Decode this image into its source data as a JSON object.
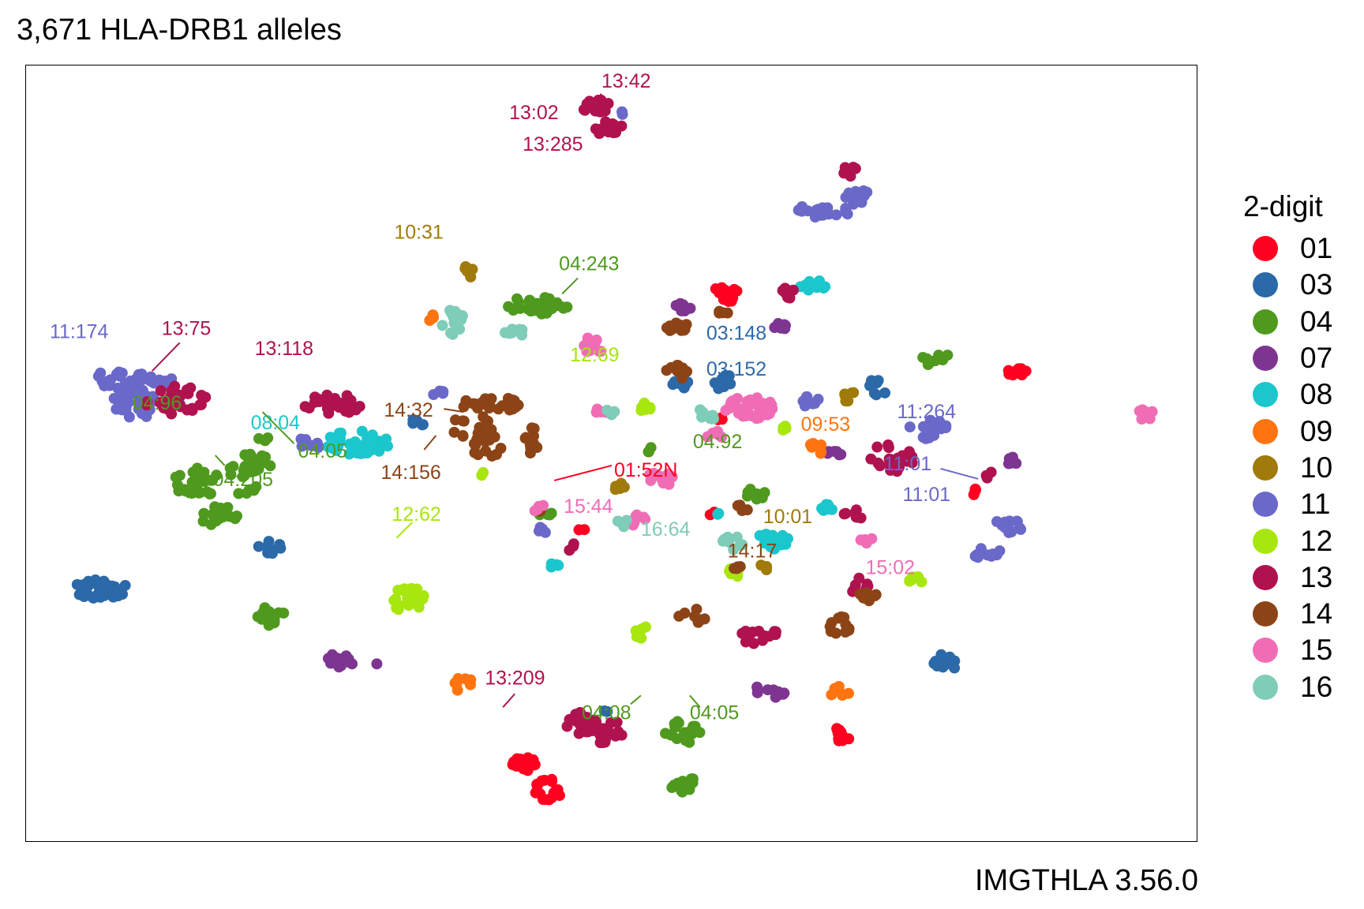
{
  "title": "3,671 HLA-DRB1 alleles",
  "caption": "IMGTHLA 3.56.0",
  "chart_data": {
    "type": "scatter",
    "title": "3,671 HLA-DRB1 alleles",
    "xlabel": "",
    "ylabel": "",
    "xlim": [
      0,
      1485
    ],
    "ylim": [
      985,
      0
    ],
    "grid": false,
    "legend": {
      "title": "2-digit",
      "position": "right",
      "entries": [
        {
          "name": "01",
          "color": "#FF0020"
        },
        {
          "name": "03",
          "color": "#2C69A8"
        },
        {
          "name": "04",
          "color": "#4F9A1E"
        },
        {
          "name": "07",
          "color": "#7E3591"
        },
        {
          "name": "08",
          "color": "#1BC7CC"
        },
        {
          "name": "09",
          "color": "#FF7410"
        },
        {
          "name": "10",
          "color": "#A07A0A"
        },
        {
          "name": "11",
          "color": "#6A69C9"
        },
        {
          "name": "12",
          "color": "#A8E60F"
        },
        {
          "name": "13",
          "color": "#B0124F"
        },
        {
          "name": "14",
          "color": "#8C4416"
        },
        {
          "name": "15",
          "color": "#F06DB5"
        },
        {
          "name": "16",
          "color": "#7FCCB8"
        }
      ]
    },
    "series": [
      {
        "name": "01",
        "clusters": [
          [
            887,
            291,
            18,
            10,
            14
          ],
          [
            1259,
            389,
            14,
            8,
            10
          ],
          [
            1206,
            542,
            8,
            7,
            4
          ],
          [
            883,
            447,
            6,
            6,
            3
          ],
          [
            633,
            887,
            16,
            12,
            14
          ],
          [
            662,
            920,
            18,
            14,
            16
          ],
          [
            1036,
            850,
            14,
            10,
            12
          ],
          [
            705,
            590,
            4,
            4,
            2
          ],
          [
            872,
            570,
            6,
            5,
            2
          ]
        ]
      },
      {
        "name": "03",
        "clusters": [
          [
            95,
            665,
            35,
            12,
            40
          ],
          [
            310,
            612,
            16,
            8,
            8
          ],
          [
            885,
            402,
            16,
            10,
            10
          ],
          [
            835,
            405,
            18,
            5,
            6
          ],
          [
            1078,
            412,
            12,
            14,
            8
          ],
          [
            1165,
            758,
            16,
            12,
            10
          ],
          [
            493,
            457,
            12,
            8,
            6
          ],
          [
            735,
            822,
            4,
            4,
            2
          ]
        ]
      },
      {
        "name": "04",
        "clusters": [
          [
            650,
            305,
            40,
            12,
            30
          ],
          [
            1155,
            372,
            18,
            10,
            10
          ],
          [
            216,
            530,
            30,
            20,
            26
          ],
          [
            248,
            575,
            28,
            16,
            18
          ],
          [
            294,
            502,
            20,
            16,
            14
          ],
          [
            275,
            525,
            26,
            20,
            14
          ],
          [
            311,
            700,
            20,
            14,
            12
          ],
          [
            833,
            848,
            22,
            16,
            16
          ],
          [
            833,
            912,
            16,
            12,
            10
          ],
          [
            924,
            545,
            16,
            8,
            8
          ],
          [
            792,
            488,
            6,
            5,
            3
          ],
          [
            660,
            572,
            10,
            6,
            4
          ],
          [
            303,
            475,
            8,
            5,
            3
          ]
        ]
      },
      {
        "name": "07",
        "clusters": [
          [
            831,
            310,
            14,
            10,
            10
          ],
          [
            957,
            334,
            8,
            8,
            6
          ],
          [
            400,
            753,
            20,
            12,
            16
          ],
          [
            943,
            795,
            20,
            10,
            12
          ],
          [
            1026,
            493,
            10,
            8,
            6
          ],
          [
            1252,
            505,
            12,
            8,
            6
          ],
          [
            445,
            760,
            3,
            3,
            1
          ]
        ]
      },
      {
        "name": "08",
        "clusters": [
          [
            998,
            278,
            20,
            8,
            12
          ],
          [
            420,
            480,
            45,
            16,
            34
          ],
          [
            947,
            603,
            20,
            12,
            14
          ],
          [
            1018,
            565,
            12,
            8,
            8
          ],
          [
            670,
            636,
            6,
            6,
            4
          ],
          [
            880,
            568,
            4,
            4,
            2
          ]
        ]
      },
      {
        "name": "09",
        "clusters": [
          [
            510,
            318,
            8,
            6,
            4
          ],
          [
            1005,
            483,
            12,
            10,
            8
          ],
          [
            1033,
            795,
            14,
            8,
            8
          ],
          [
            553,
            785,
            14,
            10,
            8
          ]
        ]
      },
      {
        "name": "10",
        "clusters": [
          [
            562,
            261,
            8,
            8,
            6
          ],
          [
            1046,
            421,
            10,
            8,
            6
          ],
          [
            748,
            534,
            12,
            8,
            6
          ],
          [
            936,
            638,
            6,
            5,
            3
          ]
        ]
      },
      {
        "name": "11",
        "clusters": [
          [
            124,
            398,
            36,
            14,
            26
          ],
          [
            138,
            430,
            30,
            20,
            30
          ],
          [
            173,
            400,
            14,
            8,
            8
          ],
          [
            1010,
            185,
            38,
            8,
            22
          ],
          [
            1055,
            168,
            18,
            10,
            12
          ],
          [
            1240,
            585,
            24,
            12,
            16
          ],
          [
            1218,
            620,
            20,
            10,
            10
          ],
          [
            1145,
            462,
            26,
            12,
            16
          ],
          [
            993,
            425,
            14,
            8,
            8
          ],
          [
            360,
            480,
            16,
            8,
            10
          ],
          [
            525,
            415,
            10,
            6,
            4
          ],
          [
            654,
            590,
            8,
            6,
            4
          ],
          [
            755,
            62,
            4,
            4,
            2
          ]
        ]
      },
      {
        "name": "12",
        "clusters": [
          [
            485,
            678,
            24,
            16,
            28
          ],
          [
            786,
            434,
            10,
            6,
            6
          ],
          [
            897,
            645,
            10,
            8,
            6
          ],
          [
            1127,
            656,
            10,
            8,
            6
          ],
          [
            783,
            720,
            12,
            8,
            6
          ],
          [
            962,
            458,
            8,
            6,
            4
          ],
          [
            580,
            520,
            4,
            4,
            2
          ]
        ]
      },
      {
        "name": "13",
        "clusters": [
          [
            725,
            50,
            24,
            10,
            18
          ],
          [
            735,
            78,
            22,
            10,
            14
          ],
          [
            390,
            430,
            40,
            12,
            28
          ],
          [
            190,
            425,
            40,
            18,
            30
          ],
          [
            1097,
            500,
            30,
            20,
            20
          ],
          [
            706,
            835,
            22,
            14,
            18
          ],
          [
            733,
            845,
            24,
            18,
            22
          ],
          [
            930,
            724,
            24,
            12,
            14
          ],
          [
            967,
            289,
            8,
            8,
            6
          ],
          [
            1050,
            570,
            14,
            8,
            8
          ],
          [
            1045,
            135,
            10,
            8,
            6
          ],
          [
            1220,
            520,
            6,
            6,
            3
          ],
          [
            690,
            610,
            6,
            6,
            3
          ],
          [
            1055,
            660,
            14,
            10,
            8
          ]
        ]
      },
      {
        "name": "14",
        "clusters": [
          [
            593,
            430,
            40,
            10,
            28
          ],
          [
            566,
            460,
            30,
            16,
            18
          ],
          [
            585,
            485,
            22,
            16,
            14
          ],
          [
            640,
            475,
            14,
            22,
            12
          ],
          [
            825,
            330,
            14,
            10,
            12
          ],
          [
            826,
            390,
            14,
            10,
            8
          ],
          [
            885,
            310,
            8,
            8,
            4
          ],
          [
            902,
            635,
            6,
            6,
            4
          ],
          [
            1070,
            672,
            12,
            8,
            8
          ],
          [
            1033,
            712,
            16,
            12,
            12
          ],
          [
            908,
            565,
            8,
            8,
            4
          ],
          [
            850,
            700,
            22,
            10,
            8
          ],
          [
            655,
            565,
            4,
            4,
            2
          ]
        ]
      },
      {
        "name": "15",
        "clusters": [
          [
            715,
            358,
            16,
            12,
            12
          ],
          [
            918,
            435,
            32,
            14,
            36
          ],
          [
            875,
            470,
            12,
            6,
            6
          ],
          [
            1418,
            441,
            16,
            10,
            10
          ],
          [
            803,
            525,
            18,
            10,
            10
          ],
          [
            777,
            578,
            10,
            8,
            6
          ],
          [
            1066,
            603,
            10,
            6,
            4
          ],
          [
            730,
            438,
            8,
            6,
            4
          ],
          [
            650,
            560,
            8,
            8,
            4
          ]
        ]
      },
      {
        "name": "16",
        "clusters": [
          [
            540,
            322,
            14,
            20,
            14
          ],
          [
            620,
            340,
            14,
            6,
            8
          ],
          [
            866,
            440,
            12,
            10,
            8
          ],
          [
            898,
            605,
            14,
            10,
            8
          ],
          [
            758,
            580,
            8,
            8,
            4
          ],
          [
            743,
            438,
            6,
            6,
            3
          ]
        ]
      }
    ],
    "annotations": [
      {
        "text": "13:42",
        "series": "13"
      },
      {
        "text": "13:02",
        "series": "13"
      },
      {
        "text": "13:285",
        "series": "13"
      },
      {
        "text": "10:31",
        "series": "10"
      },
      {
        "text": "04:243",
        "series": "04"
      },
      {
        "text": "11:174",
        "series": "11"
      },
      {
        "text": "13:75",
        "series": "13"
      },
      {
        "text": "13:118",
        "series": "13"
      },
      {
        "text": "03:148",
        "series": "03"
      },
      {
        "text": "12:69",
        "series": "12"
      },
      {
        "text": "03:152",
        "series": "03"
      },
      {
        "text": "04:96",
        "series": "04"
      },
      {
        "text": "08:04",
        "series": "08"
      },
      {
        "text": "04:05",
        "series": "04"
      },
      {
        "text": "14:32",
        "series": "14"
      },
      {
        "text": "04:205",
        "series": "04"
      },
      {
        "text": "14:156",
        "series": "14"
      },
      {
        "text": "01:52N",
        "series": "01"
      },
      {
        "text": "04:92",
        "series": "04"
      },
      {
        "text": "09:53",
        "series": "09"
      },
      {
        "text": "11:264",
        "series": "11"
      },
      {
        "text": "11:01",
        "series": "11"
      },
      {
        "text": "11:01",
        "series": "11"
      },
      {
        "text": "12:62",
        "series": "12"
      },
      {
        "text": "15:44",
        "series": "15"
      },
      {
        "text": "16:64",
        "series": "16"
      },
      {
        "text": "10:01",
        "series": "10"
      },
      {
        "text": "14:17",
        "series": "14"
      },
      {
        "text": "15:02",
        "series": "15"
      },
      {
        "text": "13:209",
        "series": "13"
      },
      {
        "text": "04:08",
        "series": "04"
      },
      {
        "text": "04:05",
        "series": "04"
      }
    ]
  }
}
